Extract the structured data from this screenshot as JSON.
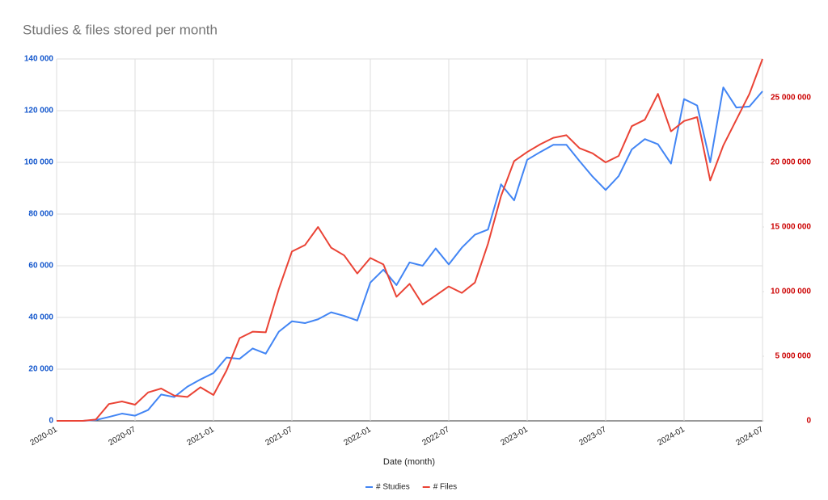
{
  "chart_data": {
    "type": "line",
    "title": "Studies & files stored per month",
    "x_label": "Date (month)",
    "x": [
      "2020-01",
      "2020-02",
      "2020-03",
      "2020-04",
      "2020-05",
      "2020-06",
      "2020-07",
      "2020-08",
      "2020-09",
      "2020-10",
      "2020-11",
      "2020-12",
      "2021-01",
      "2021-02",
      "2021-03",
      "2021-04",
      "2021-05",
      "2021-06",
      "2021-07",
      "2021-08",
      "2021-09",
      "2021-10",
      "2021-11",
      "2021-12",
      "2022-01",
      "2022-02",
      "2022-03",
      "2022-04",
      "2022-05",
      "2022-06",
      "2022-07",
      "2022-08",
      "2022-09",
      "2022-10",
      "2022-11",
      "2022-12",
      "2023-01",
      "2023-02",
      "2023-03",
      "2023-04",
      "2023-05",
      "2023-06",
      "2023-07",
      "2023-08",
      "2023-09",
      "2023-10",
      "2023-11",
      "2023-12",
      "2024-01",
      "2024-02",
      "2024-03",
      "2024-04",
      "2024-05",
      "2024-06",
      "2024-07"
    ],
    "xticks": [
      "2020-01",
      "2020-07",
      "2021-01",
      "2021-07",
      "2022-01",
      "2022-07",
      "2023-01",
      "2023-07",
      "2024-01",
      "2024-07"
    ],
    "series": [
      {
        "name": "# Studies",
        "color": "#4285f4",
        "values": [
          0,
          0,
          0,
          300,
          1500,
          2800,
          2000,
          4200,
          10200,
          9200,
          13200,
          16000,
          18500,
          24500,
          24000,
          28000,
          26000,
          34500,
          38500,
          37800,
          39300,
          42000,
          40600,
          38800,
          53500,
          58500,
          52500,
          61300,
          60000,
          66700,
          60500,
          67000,
          72000,
          74000,
          91500,
          85300,
          101000,
          104000,
          106800,
          106800,
          100500,
          94500,
          89300,
          94700,
          105000,
          109000,
          107000,
          99500,
          124500,
          122000,
          100000,
          129000,
          121200,
          121600,
          127500
        ]
      },
      {
        "name": "# Files",
        "color": "#ea4335",
        "axis": "y2",
        "values": [
          0,
          0,
          0,
          100000,
          1300000,
          1500000,
          1250000,
          2200000,
          2500000,
          1950000,
          1850000,
          2600000,
          2000000,
          3900000,
          6400000,
          6900000,
          6850000,
          10200000,
          13100000,
          13600000,
          15000000,
          13400000,
          12800000,
          11400000,
          12600000,
          12100000,
          9600000,
          10600000,
          9000000,
          9700000,
          10400000,
          9900000,
          10700000,
          13700000,
          17400000,
          20100000,
          20800000,
          21400000,
          21900000,
          22100000,
          21100000,
          20700000,
          20000000,
          20500000,
          22800000,
          23300000,
          25300000,
          22400000,
          23200000,
          23500000,
          18600000,
          21300000,
          23300000,
          25300000,
          28000000
        ]
      }
    ],
    "ylim": [
      0,
      140000
    ],
    "yticks": [
      0,
      {
        "value": 20000,
        "label": "20 000"
      },
      {
        "value": 40000,
        "label": "40 000"
      },
      {
        "value": 60000,
        "label": "60 000"
      },
      {
        "value": 80000,
        "label": "80 000"
      },
      {
        "value": 100000,
        "label": "100 000"
      },
      {
        "value": 120000,
        "label": "120 000"
      },
      {
        "value": 140000,
        "label": "140 000"
      }
    ],
    "y2lim": [
      0,
      28000000
    ],
    "y2ticks": [
      0,
      {
        "value": 5000000,
        "label": "5 000 000"
      },
      {
        "value": 10000000,
        "label": "10 000 000"
      },
      {
        "value": 15000000,
        "label": "15 000 000"
      },
      {
        "value": 20000000,
        "label": "20 000 000"
      },
      {
        "value": 25000000,
        "label": "25 000 000"
      }
    ],
    "grid": true,
    "legend": "bottom"
  }
}
